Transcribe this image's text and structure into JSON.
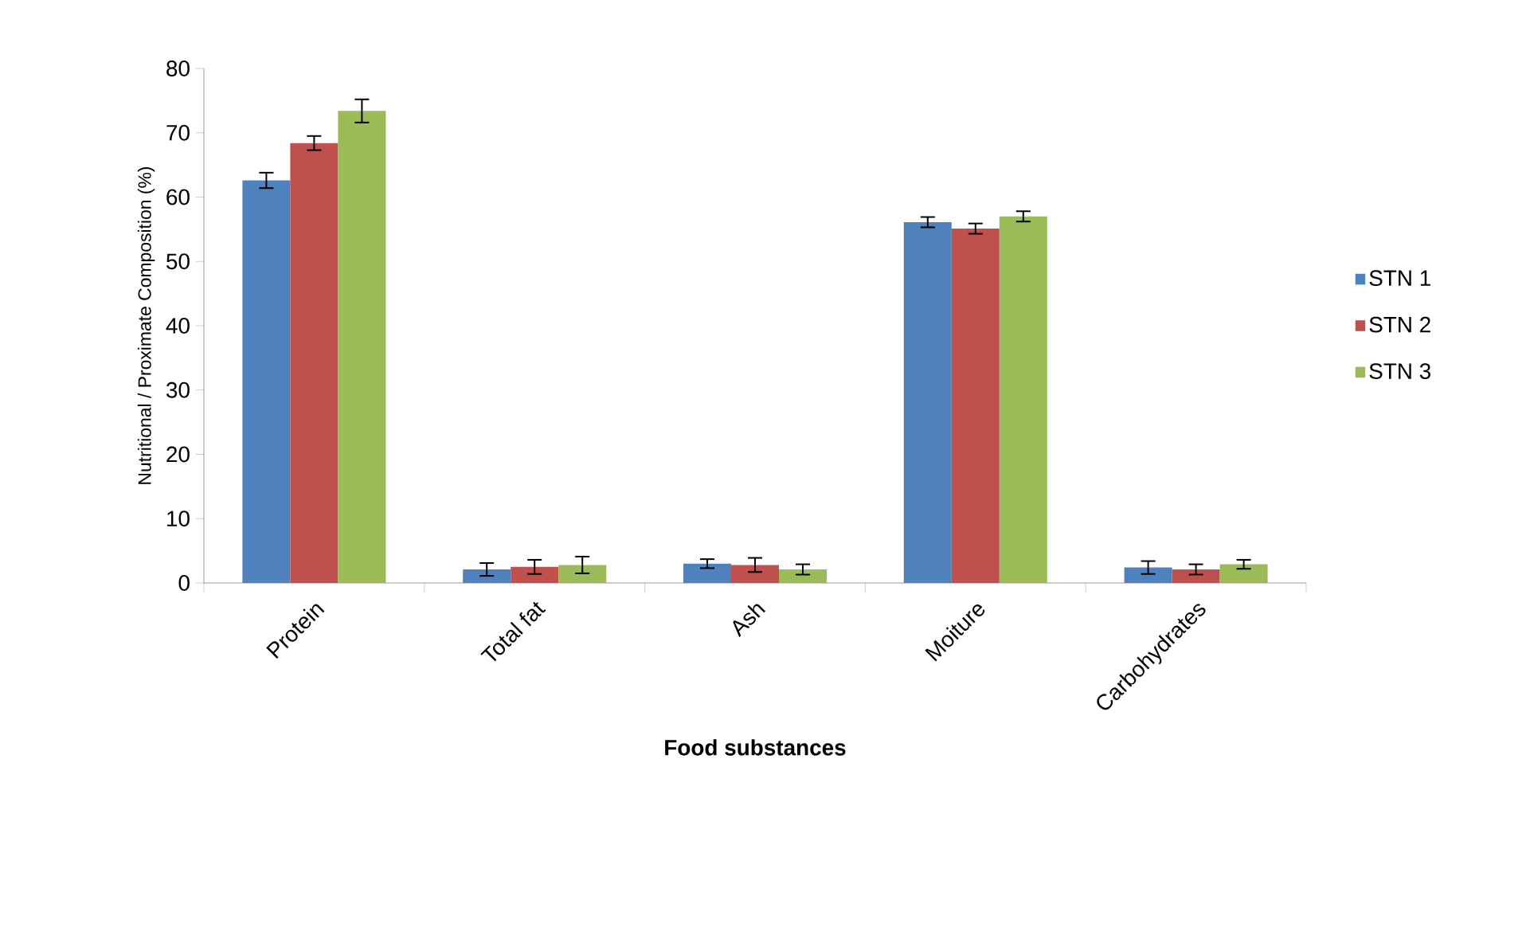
{
  "chart_data": {
    "type": "bar",
    "categories": [
      "Protein",
      "Total fat",
      "Ash",
      "Moiture",
      "Carbohydrates"
    ],
    "series": [
      {
        "name": "STN 1",
        "color": "#4f81bd",
        "values": [
          62.6,
          2.1,
          3.0,
          56.1,
          2.4
        ],
        "errors": [
          1.2,
          1.0,
          0.7,
          0.8,
          1.0
        ]
      },
      {
        "name": "STN 2",
        "color": "#c0504d",
        "values": [
          68.4,
          2.5,
          2.8,
          55.1,
          2.1
        ],
        "errors": [
          1.1,
          1.1,
          1.1,
          0.8,
          0.8
        ]
      },
      {
        "name": "STN 3",
        "color": "#9bbb59",
        "values": [
          73.4,
          2.8,
          2.1,
          57.0,
          2.9
        ],
        "errors": [
          1.8,
          1.3,
          0.8,
          0.8,
          0.7
        ]
      }
    ],
    "ylim": [
      0,
      80
    ],
    "yticks": [
      0,
      10,
      20,
      30,
      40,
      50,
      60,
      70,
      80
    ],
    "xlabel": "Food substances",
    "ylabel": "Nutritional / Proximate Composition (%)",
    "legend": "right"
  }
}
